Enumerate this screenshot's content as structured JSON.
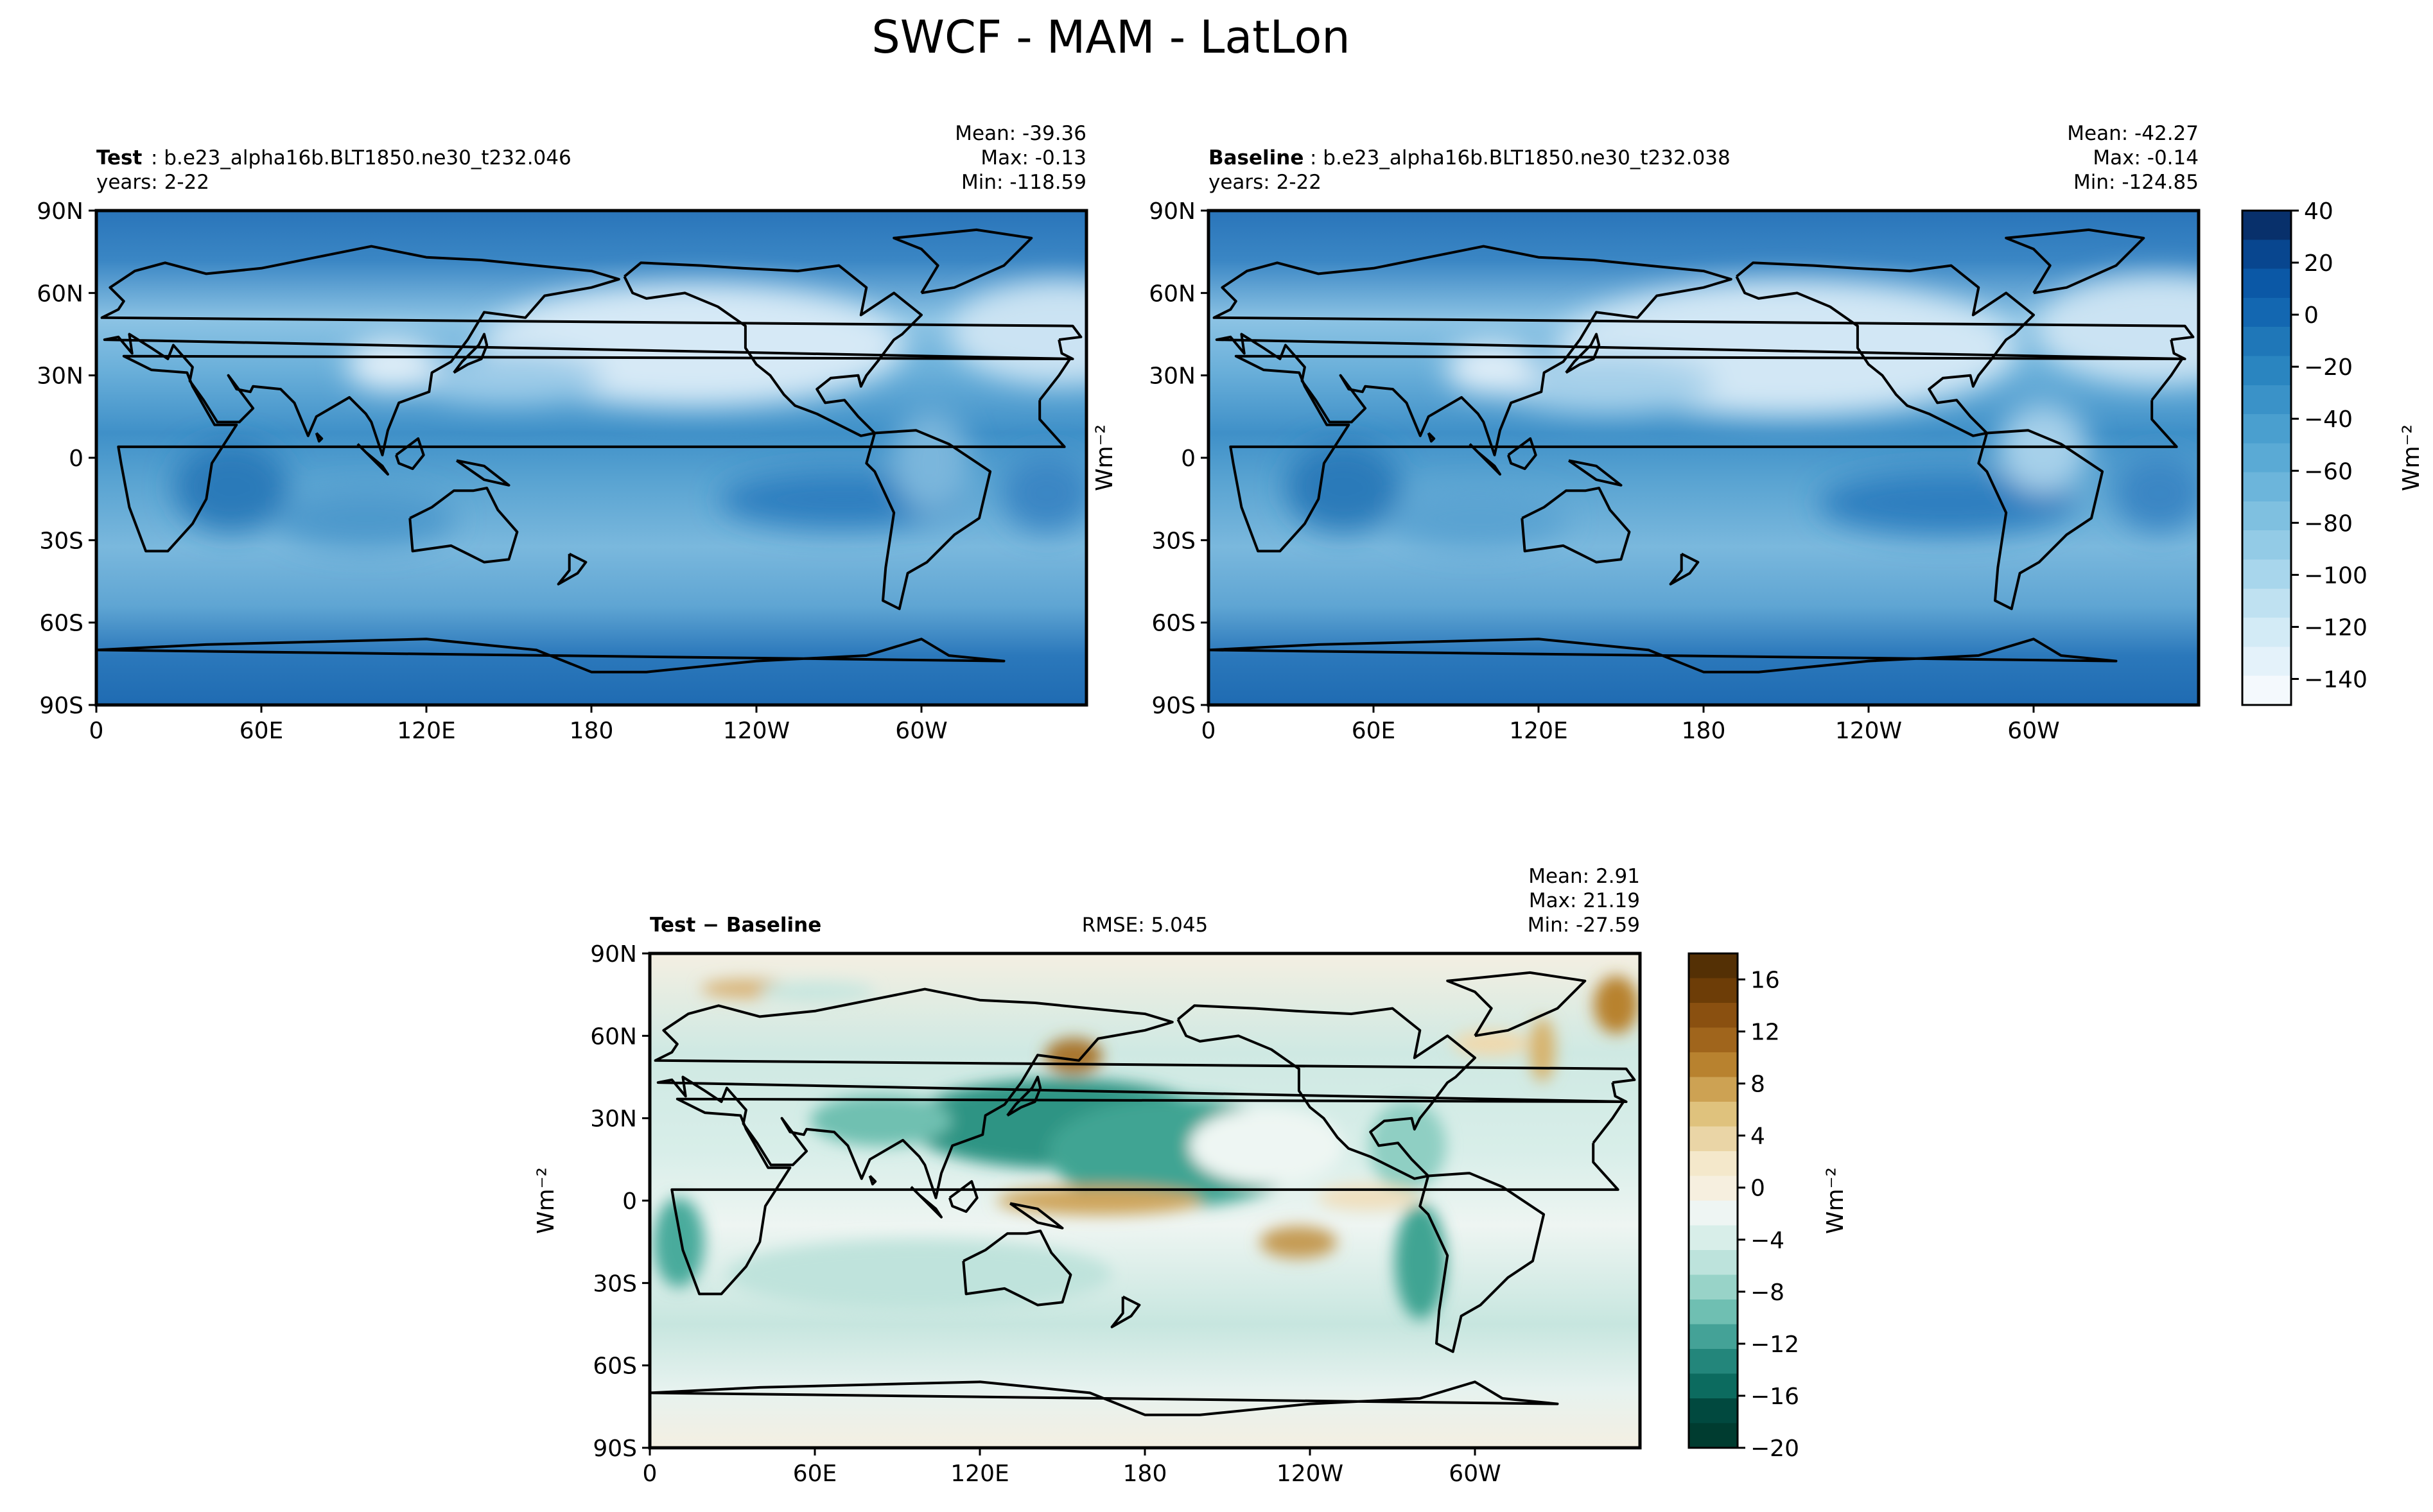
{
  "figure": {
    "title": "SWCF - MAM - LatLon"
  },
  "colors": {
    "land_outline": "#000000",
    "frame": "#000000",
    "blues_scale": [
      "#08306b",
      "#08468f",
      "#0b58a6",
      "#1367b1",
      "#1f77b8",
      "#2a85c0",
      "#3a92c8",
      "#4a9fcf",
      "#5aaad5",
      "#6cb5db",
      "#7fc0e0",
      "#93cbe6",
      "#a8d6ec",
      "#bfe1f1",
      "#d3ebf6",
      "#e4f2fa",
      "#f4f9fd"
    ],
    "diff_scale": [
      "#543005",
      "#6d3d07",
      "#8a5010",
      "#a0651c",
      "#b8822f",
      "#cda253",
      "#dfc27d",
      "#ead5a6",
      "#f4e8cb",
      "#f6efdf",
      "#eef5f3",
      "#d8eee9",
      "#bde3dc",
      "#98d3c8",
      "#6fbfb2",
      "#44a297",
      "#23867b",
      "#0c6b5f",
      "#01493f",
      "#003c30"
    ]
  },
  "panels": [
    {
      "id": "test",
      "label_bold": "Test",
      "label_rest": ": b.e23_alpha16b.BLT1850.ne30_t232.046",
      "years": "years: 2-22",
      "stats": [
        "Mean: -39.36",
        "Max: -0.13",
        "Min: -118.59"
      ],
      "lat_ticks": [
        "90N",
        "60N",
        "30N",
        "0",
        "30S",
        "60S",
        "90S"
      ],
      "lon_ticks": [
        "0",
        "60E",
        "120E",
        "180",
        "120W",
        "60W"
      ],
      "ylabel": ""
    },
    {
      "id": "baseline",
      "label_bold": "Baseline",
      "label_rest": ": b.e23_alpha16b.BLT1850.ne30_t232.038",
      "years": "years: 2-22",
      "stats": [
        "Mean: -42.27",
        "Max: -0.14",
        "Min: -124.85"
      ],
      "lat_ticks": [
        "90N",
        "60N",
        "30N",
        "0",
        "30S",
        "60S",
        "90S"
      ],
      "lon_ticks": [
        "0",
        "60E",
        "120E",
        "180",
        "120W",
        "60W"
      ],
      "ylabel": "Wm⁻²"
    },
    {
      "id": "diff",
      "label_bold": "Test − Baseline",
      "rmse": "RMSE: 5.045",
      "stats": [
        "Mean:  2.91",
        "Max: 21.19",
        "Min: -27.59"
      ],
      "lat_ticks": [
        "90N",
        "60N",
        "30N",
        "0",
        "30S",
        "60S",
        "90S"
      ],
      "lon_ticks": [
        "0",
        "60E",
        "120E",
        "180",
        "120W",
        "60W"
      ],
      "ylabel": "Wm⁻²"
    }
  ],
  "colorbars": {
    "top": {
      "label": "Wm⁻²",
      "range": [
        -150,
        40
      ],
      "ticks": [
        "40",
        "20",
        "0",
        "−20",
        "−40",
        "−60",
        "−80",
        "−100",
        "−120",
        "−140"
      ]
    },
    "diff": {
      "label": "Wm⁻²",
      "range": [
        -20,
        18
      ],
      "ticks": [
        "16",
        "12",
        "8",
        "4",
        "0",
        "−4",
        "−8",
        "−12",
        "−16",
        "−20"
      ]
    }
  }
}
